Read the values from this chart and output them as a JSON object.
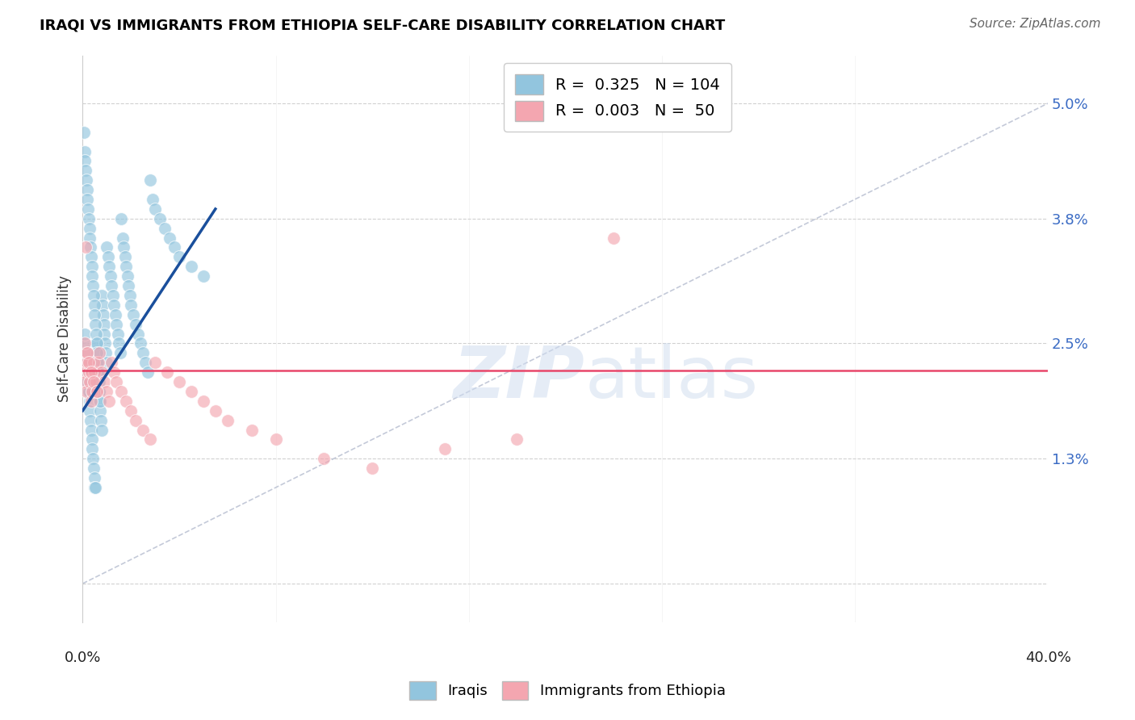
{
  "title": "IRAQI VS IMMIGRANTS FROM ETHIOPIA SELF-CARE DISABILITY CORRELATION CHART",
  "source": "Source: ZipAtlas.com",
  "ylabel": "Self-Care Disability",
  "xmin": 0.0,
  "xmax": 40.0,
  "ymin": -0.4,
  "ymax": 5.5,
  "yticks": [
    0.0,
    1.3,
    2.5,
    3.8,
    5.0
  ],
  "ytick_labels": [
    "",
    "1.3%",
    "2.5%",
    "3.8%",
    "5.0%"
  ],
  "legend_R1": "0.325",
  "legend_N1": "104",
  "legend_R2": "0.003",
  "legend_N2": " 50",
  "color_iraqi": "#92c5de",
  "color_ethiopia": "#f4a6b0",
  "color_line_iraqi": "#1a4f9c",
  "color_line_ethiopia": "#e8476a",
  "watermark_zip": "ZIP",
  "watermark_atlas": "atlas",
  "iraqi_x": [
    0.05,
    0.08,
    0.1,
    0.12,
    0.15,
    0.18,
    0.2,
    0.22,
    0.25,
    0.28,
    0.3,
    0.32,
    0.35,
    0.38,
    0.4,
    0.42,
    0.45,
    0.48,
    0.5,
    0.52,
    0.55,
    0.58,
    0.6,
    0.62,
    0.65,
    0.68,
    0.7,
    0.72,
    0.75,
    0.78,
    0.8,
    0.82,
    0.85,
    0.88,
    0.9,
    0.92,
    0.95,
    0.98,
    1.0,
    1.05,
    1.1,
    1.15,
    1.2,
    1.25,
    1.3,
    1.35,
    1.4,
    1.45,
    1.5,
    1.55,
    1.6,
    1.65,
    1.7,
    1.75,
    1.8,
    1.85,
    1.9,
    1.95,
    2.0,
    2.1,
    2.2,
    2.3,
    2.4,
    2.5,
    2.6,
    2.7,
    2.8,
    2.9,
    3.0,
    3.2,
    3.4,
    3.6,
    3.8,
    4.0,
    4.5,
    5.0,
    0.05,
    0.08,
    0.1,
    0.12,
    0.15,
    0.18,
    0.2,
    0.22,
    0.25,
    0.28,
    0.3,
    0.32,
    0.35,
    0.38,
    0.4,
    0.42,
    0.45,
    0.48,
    0.5,
    0.52,
    0.55,
    0.58,
    0.6,
    0.62,
    0.65,
    0.68,
    0.7,
    0.72
  ],
  "iraqi_y": [
    2.3,
    2.5,
    2.6,
    2.4,
    2.3,
    2.2,
    2.1,
    2.0,
    2.0,
    1.9,
    1.8,
    1.7,
    1.6,
    1.5,
    1.4,
    1.3,
    1.2,
    1.1,
    1.0,
    1.0,
    2.5,
    2.4,
    2.3,
    2.2,
    2.1,
    2.0,
    1.9,
    1.8,
    1.7,
    1.6,
    3.0,
    2.9,
    2.8,
    2.7,
    2.6,
    2.5,
    2.4,
    2.3,
    3.5,
    3.4,
    3.3,
    3.2,
    3.1,
    3.0,
    2.9,
    2.8,
    2.7,
    2.6,
    2.5,
    2.4,
    3.8,
    3.6,
    3.5,
    3.4,
    3.3,
    3.2,
    3.1,
    3.0,
    2.9,
    2.8,
    2.7,
    2.6,
    2.5,
    2.4,
    2.3,
    2.2,
    4.2,
    4.0,
    3.9,
    3.8,
    3.7,
    3.6,
    3.5,
    3.4,
    3.3,
    3.2,
    4.7,
    4.5,
    4.4,
    4.3,
    4.2,
    4.1,
    4.0,
    3.9,
    3.8,
    3.7,
    3.6,
    3.5,
    3.4,
    3.3,
    3.2,
    3.1,
    3.0,
    2.9,
    2.8,
    2.7,
    2.6,
    2.5,
    2.4,
    2.3,
    2.2,
    2.1,
    2.0,
    1.9
  ],
  "ethiopia_x": [
    0.05,
    0.08,
    0.1,
    0.15,
    0.18,
    0.2,
    0.25,
    0.3,
    0.35,
    0.4,
    0.45,
    0.5,
    0.55,
    0.6,
    0.65,
    0.7,
    0.8,
    0.9,
    1.0,
    1.1,
    1.2,
    1.3,
    1.4,
    1.6,
    1.8,
    2.0,
    2.2,
    2.5,
    2.8,
    3.0,
    3.5,
    4.0,
    4.5,
    5.0,
    5.5,
    6.0,
    7.0,
    8.0,
    10.0,
    12.0,
    15.0,
    18.0,
    22.0,
    0.08,
    0.12,
    0.18,
    0.25,
    0.35,
    0.45,
    0.6
  ],
  "ethiopia_y": [
    2.3,
    2.2,
    2.1,
    2.0,
    2.3,
    2.4,
    2.2,
    2.1,
    1.9,
    2.0,
    2.3,
    2.2,
    2.1,
    2.0,
    2.3,
    2.4,
    2.2,
    2.1,
    2.0,
    1.9,
    2.3,
    2.2,
    2.1,
    2.0,
    1.9,
    1.8,
    1.7,
    1.6,
    1.5,
    2.3,
    2.2,
    2.1,
    2.0,
    1.9,
    1.8,
    1.7,
    1.6,
    1.5,
    1.3,
    1.2,
    1.4,
    1.5,
    3.6,
    2.5,
    3.5,
    2.4,
    2.3,
    2.2,
    2.1,
    2.0
  ],
  "diag_slope": 0.125,
  "diag_intercept": 0.0,
  "blue_trend_start_x": 0.0,
  "blue_trend_start_y": 1.8,
  "blue_trend_end_x": 5.5,
  "blue_trend_end_y": 3.9,
  "pink_trend_y": 2.22
}
